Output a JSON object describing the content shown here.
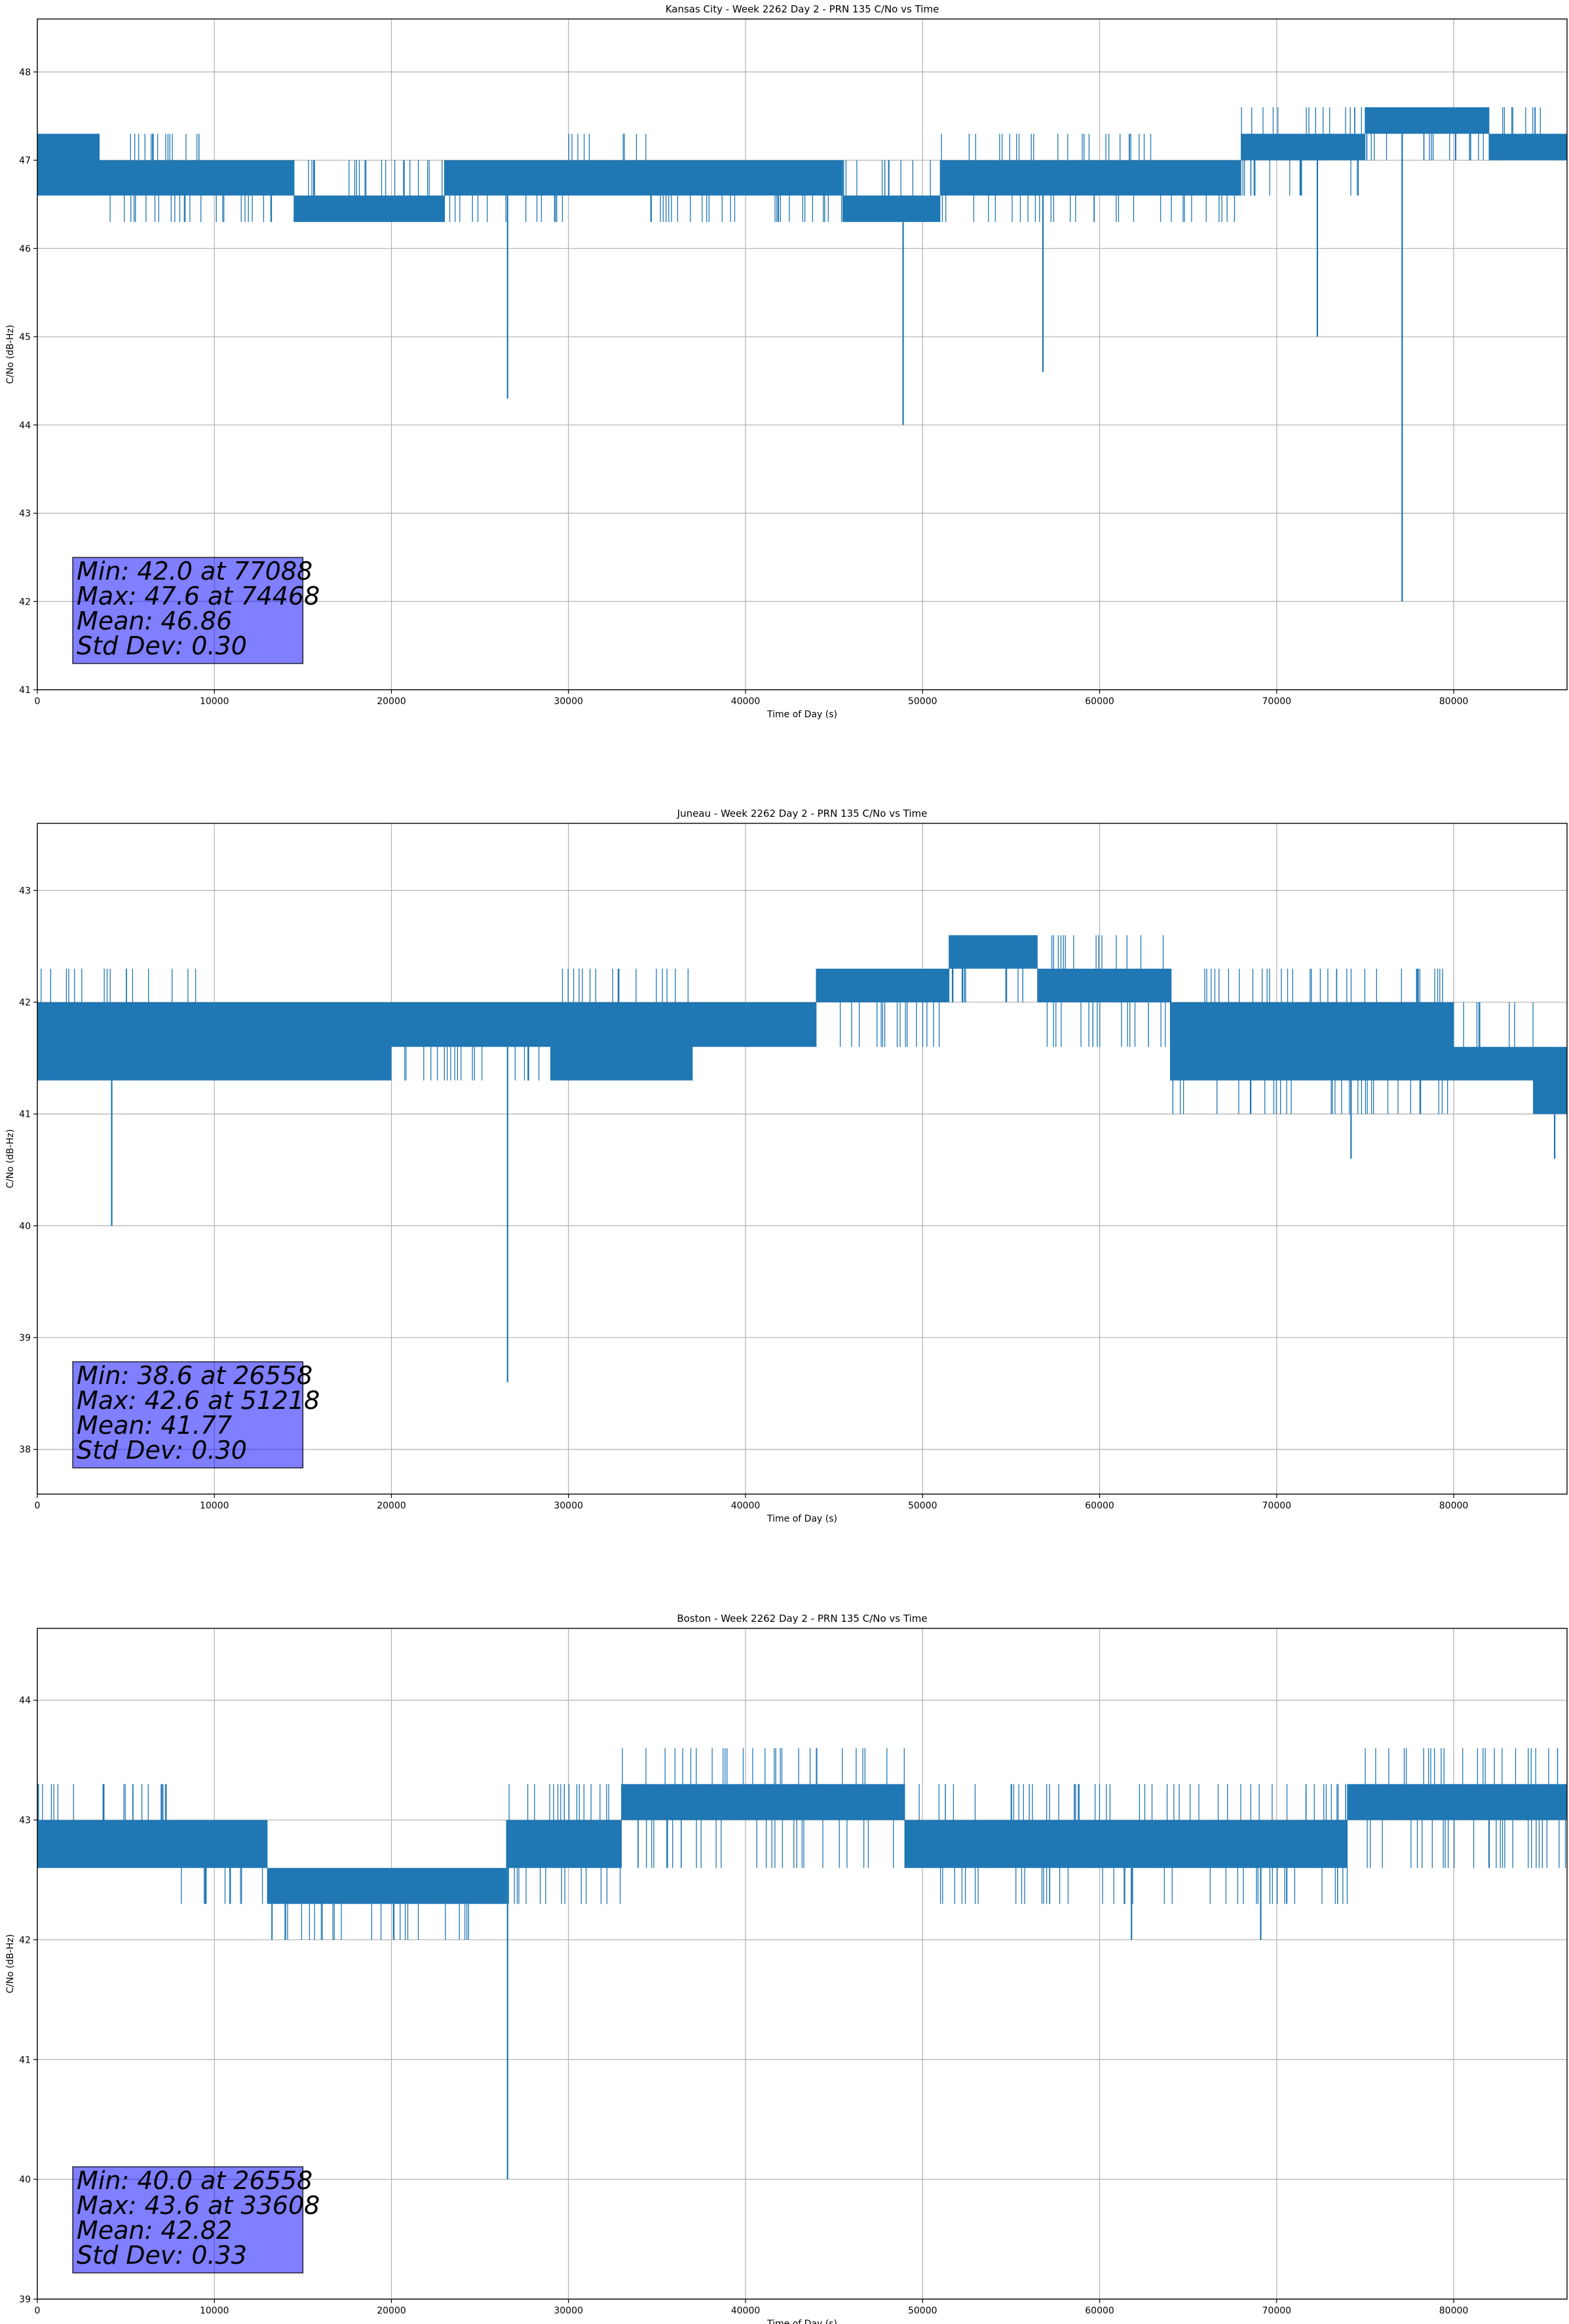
{
  "figure": {
    "series_color": "#1f77b4",
    "stats_box_color": "#8080ff"
  },
  "chart_data": [
    {
      "type": "line",
      "title": "Kansas City - Week 2262 Day 2 - PRN 135 C/No vs Time",
      "xlabel": "Time of Day (s)",
      "ylabel": "C/No (dB-Hz)",
      "xlim": [
        0,
        86400
      ],
      "ylim": [
        41,
        48.6
      ],
      "xticks": [
        0,
        10000,
        20000,
        30000,
        40000,
        50000,
        60000,
        70000,
        80000
      ],
      "yticks": [
        41,
        42,
        43,
        44,
        45,
        46,
        47,
        48
      ],
      "grid": true,
      "stats": {
        "min": "Min: 42.0 at 77088",
        "max": "Max: 47.6 at 74468",
        "mean": "Mean: 46.86",
        "std": "Std Dev: 0.30"
      },
      "bands": [
        {
          "x0": 0,
          "x1": 3500,
          "lo": 46.6,
          "hi": 47.3
        },
        {
          "x0": 3500,
          "x1": 10500,
          "lo": 46.6,
          "hi": 47.0,
          "sl": 46.3,
          "sh": 47.3
        },
        {
          "x0": 10500,
          "x1": 14500,
          "lo": 46.6,
          "hi": 47.0,
          "sl": 46.3
        },
        {
          "x0": 14500,
          "x1": 23000,
          "lo": 46.3,
          "hi": 46.6,
          "sh": 47.0
        },
        {
          "x0": 23000,
          "x1": 30000,
          "lo": 46.6,
          "hi": 47.0,
          "sl": 46.3
        },
        {
          "x0": 30000,
          "x1": 34500,
          "lo": 46.6,
          "hi": 47.0,
          "sh": 47.3
        },
        {
          "x0": 34500,
          "x1": 45500,
          "lo": 46.6,
          "hi": 47.0,
          "sl": 46.3
        },
        {
          "x0": 45500,
          "x1": 51000,
          "lo": 46.3,
          "hi": 46.6,
          "sh": 47.0
        },
        {
          "x0": 51000,
          "x1": 63000,
          "lo": 46.6,
          "hi": 47.0,
          "sl": 46.3,
          "sh": 47.3
        },
        {
          "x0": 63000,
          "x1": 68000,
          "lo": 46.6,
          "hi": 47.0,
          "sl": 46.3
        },
        {
          "x0": 68000,
          "x1": 75000,
          "lo": 47.0,
          "hi": 47.3,
          "sl": 46.6,
          "sh": 47.6
        },
        {
          "x0": 75000,
          "x1": 82000,
          "lo": 47.3,
          "hi": 47.6,
          "sl": 47.0
        },
        {
          "x0": 82000,
          "x1": 86400,
          "lo": 47.0,
          "hi": 47.3,
          "sh": 47.6
        }
      ],
      "spikes": [
        {
          "x": 26558,
          "y": 44.3
        },
        {
          "x": 48900,
          "y": 44.0
        },
        {
          "x": 56800,
          "y": 44.6
        },
        {
          "x": 72300,
          "y": 45.0
        },
        {
          "x": 77088,
          "y": 42.0
        }
      ]
    },
    {
      "type": "line",
      "title": "Juneau - Week 2262 Day 2 - PRN 135 C/No vs Time",
      "xlabel": "Time of Day (s)",
      "ylabel": "C/No (dB-Hz)",
      "xlim": [
        0,
        86400
      ],
      "ylim": [
        37.6,
        43.6
      ],
      "xticks": [
        0,
        10000,
        20000,
        30000,
        40000,
        50000,
        60000,
        70000,
        80000
      ],
      "yticks": [
        38,
        39,
        40,
        41,
        42,
        43
      ],
      "grid": true,
      "stats": {
        "min": "Min: 38.6 at 26558",
        "max": "Max: 42.6 at 51218",
        "mean": "Mean: 41.77",
        "std": "Std Dev: 0.30"
      },
      "bands": [
        {
          "x0": 0,
          "x1": 10000,
          "lo": 41.3,
          "hi": 42.0,
          "sh": 42.3
        },
        {
          "x0": 10000,
          "x1": 20000,
          "lo": 41.3,
          "hi": 42.0
        },
        {
          "x0": 20000,
          "x1": 29000,
          "lo": 41.6,
          "hi": 42.0,
          "sl": 41.3
        },
        {
          "x0": 29000,
          "x1": 37000,
          "lo": 41.3,
          "hi": 42.0,
          "sh": 42.3
        },
        {
          "x0": 37000,
          "x1": 44000,
          "lo": 41.6,
          "hi": 42.0
        },
        {
          "x0": 44000,
          "x1": 51500,
          "lo": 42.0,
          "hi": 42.3,
          "sl": 41.6
        },
        {
          "x0": 51500,
          "x1": 56500,
          "lo": 42.3,
          "hi": 42.6,
          "sl": 42.0
        },
        {
          "x0": 56500,
          "x1": 64000,
          "lo": 42.0,
          "hi": 42.3,
          "sl": 41.6,
          "sh": 42.6
        },
        {
          "x0": 64000,
          "x1": 72000,
          "lo": 41.3,
          "hi": 42.0,
          "sl": 41.0,
          "sh": 42.3
        },
        {
          "x0": 72000,
          "x1": 80000,
          "lo": 41.3,
          "hi": 42.0,
          "sl": 41.0,
          "sh": 42.3
        },
        {
          "x0": 80000,
          "x1": 84500,
          "lo": 41.3,
          "hi": 41.6,
          "sh": 42.0
        },
        {
          "x0": 84500,
          "x1": 86400,
          "lo": 41.0,
          "hi": 41.6
        }
      ],
      "spikes": [
        {
          "x": 4200,
          "y": 40.0
        },
        {
          "x": 26558,
          "y": 38.6
        },
        {
          "x": 74200,
          "y": 40.6
        },
        {
          "x": 85700,
          "y": 40.6
        }
      ]
    },
    {
      "type": "line",
      "title": "Boston - Week 2262 Day 2 - PRN 135 C/No vs Time",
      "xlabel": "Time of Day (s)",
      "ylabel": "C/No (dB-Hz)",
      "xlim": [
        0,
        86400
      ],
      "ylim": [
        39,
        44.6
      ],
      "xticks": [
        0,
        10000,
        20000,
        30000,
        40000,
        50000,
        60000,
        70000,
        80000
      ],
      "yticks": [
        39,
        40,
        41,
        42,
        43,
        44
      ],
      "grid": true,
      "stats": {
        "min": "Min: 40.0 at 26558",
        "max": "Max: 43.6 at 33608",
        "mean": "Mean: 42.82",
        "std": "Std Dev: 0.33"
      },
      "bands": [
        {
          "x0": 0,
          "x1": 7500,
          "lo": 42.6,
          "hi": 43.0,
          "sh": 43.3
        },
        {
          "x0": 7500,
          "x1": 13000,
          "lo": 42.6,
          "hi": 43.0,
          "sl": 42.3
        },
        {
          "x0": 13000,
          "x1": 26500,
          "lo": 42.3,
          "hi": 42.6,
          "sl": 42.0
        },
        {
          "x0": 26500,
          "x1": 33000,
          "lo": 42.6,
          "hi": 43.0,
          "sl": 42.3,
          "sh": 43.3
        },
        {
          "x0": 33000,
          "x1": 49000,
          "lo": 43.0,
          "hi": 43.3,
          "sl": 42.6,
          "sh": 43.6
        },
        {
          "x0": 49000,
          "x1": 74000,
          "lo": 42.6,
          "hi": 43.0,
          "sl": 42.3,
          "sh": 43.3
        },
        {
          "x0": 74000,
          "x1": 86400,
          "lo": 43.0,
          "hi": 43.3,
          "sl": 42.6,
          "sh": 43.6
        }
      ],
      "spikes": [
        {
          "x": 26558,
          "y": 40.0
        },
        {
          "x": 61800,
          "y": 42.0
        },
        {
          "x": 69100,
          "y": 42.0
        }
      ]
    }
  ]
}
